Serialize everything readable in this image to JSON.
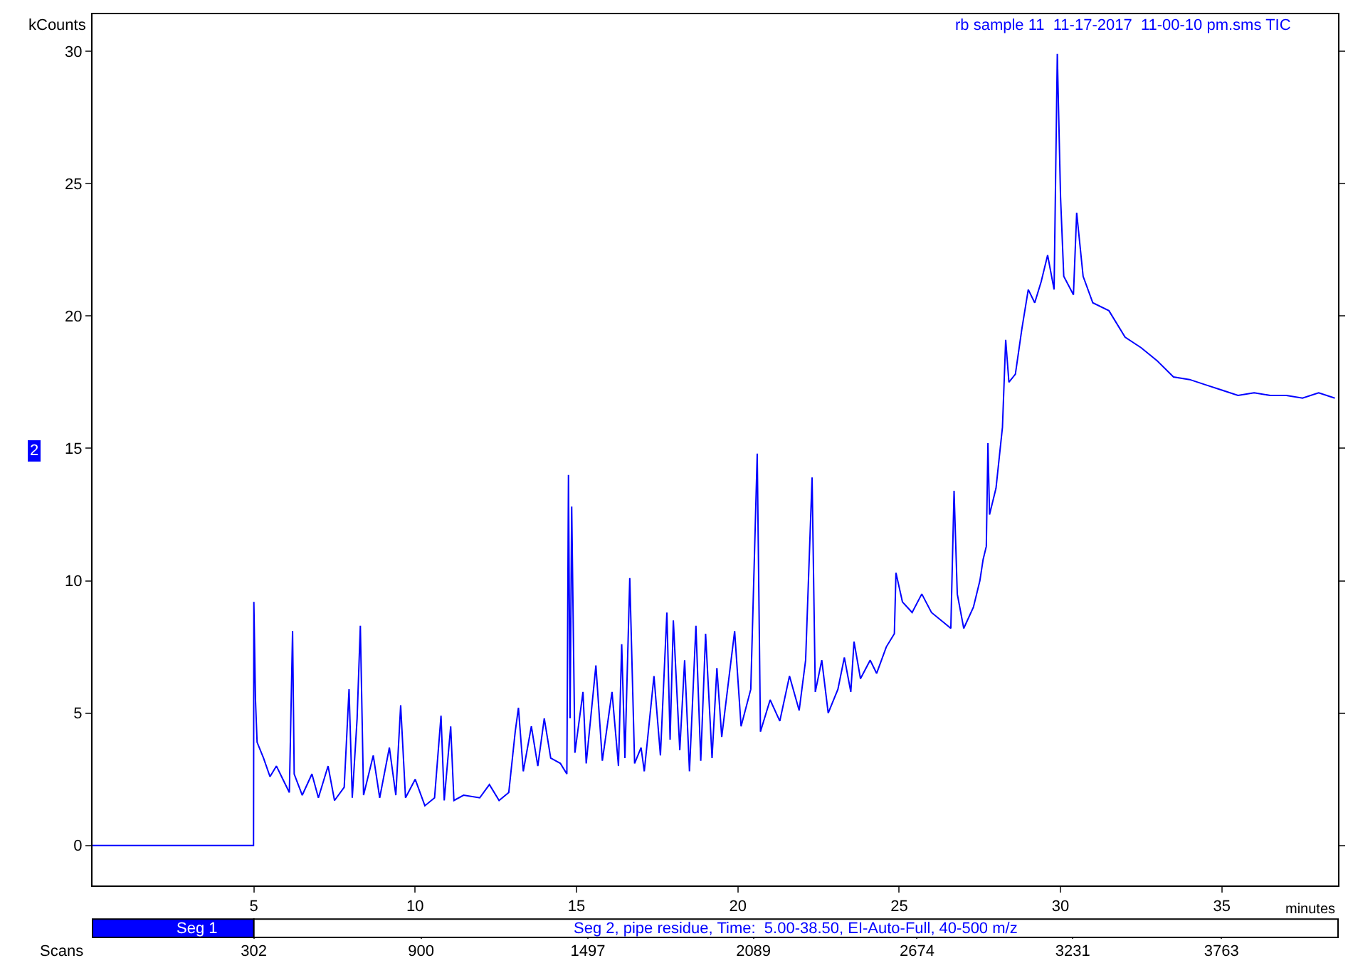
{
  "chart_data": {
    "type": "line",
    "title": "rb sample 11  11-17-2017  11-00-10 pm.sms TIC",
    "xlabel": "minutes",
    "ylabel": "kCounts",
    "x2label": "Scans",
    "annotations": [
      "Seg 1",
      "Seg 2, pipe residue, Time:  5.00-38.50, EI-Auto-Full, 40-500 m/z",
      "2"
    ],
    "xlim": [
      0,
      38.6
    ],
    "xticks": [
      5,
      10,
      15,
      20,
      25,
      30,
      35
    ],
    "x2lim": [
      -275,
      4180
    ],
    "x2ticks": [
      302,
      900,
      1497,
      2089,
      2674,
      3231,
      3763
    ],
    "ylim": [
      -1.5,
      31.4
    ],
    "yticks": [
      0,
      5,
      10,
      15,
      20,
      25,
      30
    ],
    "marker": "none",
    "line_style": "solid",
    "series": [
      {
        "color": "#0000ff",
        "x": [
          0,
          4.99,
          5.0,
          5.05,
          5.1,
          5.3,
          5.5,
          5.7,
          5.9,
          6.1,
          6.2,
          6.25,
          6.5,
          6.8,
          7.0,
          7.3,
          7.5,
          7.8,
          7.95,
          8.05,
          8.2,
          8.3,
          8.4,
          8.7,
          8.9,
          9.2,
          9.4,
          9.55,
          9.7,
          10.0,
          10.3,
          10.6,
          10.8,
          10.9,
          11.1,
          11.2,
          11.5,
          12.0,
          12.3,
          12.6,
          12.9,
          13.1,
          13.2,
          13.35,
          13.6,
          13.8,
          14.0,
          14.2,
          14.5,
          14.7,
          14.75,
          14.8,
          14.85,
          14.95,
          15.2,
          15.3,
          15.6,
          15.8,
          16.1,
          16.3,
          16.4,
          16.5,
          16.65,
          16.8,
          17.0,
          17.1,
          17.4,
          17.6,
          17.8,
          17.9,
          18.0,
          18.2,
          18.35,
          18.5,
          18.7,
          18.85,
          19.0,
          19.2,
          19.35,
          19.5,
          19.9,
          20.1,
          20.4,
          20.6,
          20.7,
          21.0,
          21.3,
          21.6,
          21.9,
          22.1,
          22.3,
          22.4,
          22.6,
          22.8,
          23.1,
          23.3,
          23.5,
          23.6,
          23.8,
          24.1,
          24.3,
          24.6,
          24.85,
          24.9,
          25.1,
          25.4,
          25.7,
          26.0,
          26.4,
          26.6,
          26.7,
          26.8,
          27.0,
          27.3,
          27.5,
          27.6,
          27.7,
          27.75,
          27.8,
          28.0,
          28.2,
          28.3,
          28.4,
          28.6,
          28.8,
          29.0,
          29.2,
          29.4,
          29.6,
          29.8,
          29.9,
          30.0,
          30.1,
          30.4,
          30.5,
          30.7,
          31.0,
          31.5,
          32.0,
          32.5,
          33.0,
          33.5,
          34.0,
          34.5,
          35.0,
          35.5,
          36.0,
          36.5,
          37.0,
          37.5,
          38.0,
          38.5
        ],
        "values": [
          0,
          0,
          9.2,
          5.5,
          3.9,
          3.3,
          2.6,
          3.0,
          2.5,
          2.0,
          8.1,
          2.7,
          1.9,
          2.7,
          1.8,
          3.0,
          1.7,
          2.2,
          5.9,
          1.8,
          4.8,
          8.3,
          1.9,
          3.4,
          1.8,
          3.7,
          1.9,
          5.3,
          1.8,
          2.5,
          1.5,
          1.8,
          4.9,
          1.7,
          4.5,
          1.7,
          1.9,
          1.8,
          2.3,
          1.7,
          2.0,
          4.3,
          5.2,
          2.8,
          4.5,
          3.0,
          4.8,
          3.3,
          3.1,
          2.7,
          14.0,
          4.8,
          12.8,
          3.5,
          5.8,
          3.1,
          6.8,
          3.2,
          5.8,
          3.0,
          7.6,
          3.3,
          10.1,
          3.1,
          3.7,
          2.8,
          6.4,
          3.4,
          8.8,
          4.0,
          8.5,
          3.6,
          7.0,
          2.8,
          8.3,
          3.2,
          8.0,
          3.3,
          6.7,
          4.1,
          8.1,
          4.5,
          5.9,
          14.8,
          4.3,
          5.5,
          4.7,
          6.4,
          5.1,
          7.0,
          13.9,
          5.8,
          7.0,
          5.0,
          5.9,
          7.1,
          5.8,
          7.7,
          6.3,
          7.0,
          6.5,
          7.5,
          8.0,
          10.3,
          9.2,
          8.8,
          9.5,
          8.8,
          8.4,
          8.2,
          13.4,
          9.5,
          8.2,
          9.0,
          10.0,
          10.8,
          11.3,
          15.2,
          12.5,
          13.5,
          15.8,
          19.1,
          17.5,
          17.8,
          19.5,
          21.0,
          20.5,
          21.3,
          22.3,
          21.0,
          29.9,
          24.5,
          21.5,
          20.8,
          23.9,
          21.5,
          20.5,
          20.2,
          19.2,
          18.8,
          18.3,
          17.7,
          17.6,
          17.4,
          17.2,
          17.0,
          17.1,
          17.0,
          17.0,
          16.9,
          17.1,
          16.9
        ]
      }
    ]
  }
}
